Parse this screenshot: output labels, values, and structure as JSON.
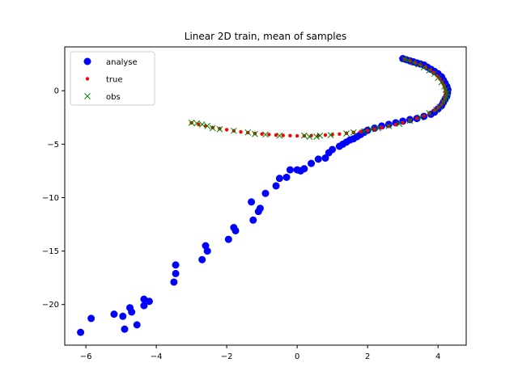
{
  "chart_data": {
    "type": "scatter",
    "title": "Linear 2D train, mean of samples",
    "xlabel": "",
    "ylabel": "",
    "xlim": [
      -6.6,
      4.8
    ],
    "ylim": [
      -23.8,
      4.1
    ],
    "x_ticks": [
      -6,
      -4,
      -2,
      0,
      2,
      4
    ],
    "x_tick_labels": [
      "−6",
      "−4",
      "−2",
      "0",
      "2",
      "4"
    ],
    "y_ticks": [
      -20,
      -15,
      -10,
      -5,
      0
    ],
    "y_tick_labels": [
      "−20",
      "−15",
      "−10",
      "−5",
      "0"
    ],
    "grid": false,
    "legend_position": "top-left",
    "series": [
      {
        "name": "analyse",
        "marker": "circle",
        "color": "#0000ff",
        "points": [
          [
            3.0,
            3.0
          ],
          [
            3.1,
            2.9
          ],
          [
            3.2,
            2.8
          ],
          [
            3.3,
            2.7
          ],
          [
            3.4,
            2.6
          ],
          [
            3.5,
            2.5
          ],
          [
            3.6,
            2.4
          ],
          [
            3.7,
            2.2
          ],
          [
            3.8,
            2.0
          ],
          [
            3.9,
            1.8
          ],
          [
            4.0,
            1.6
          ],
          [
            4.1,
            1.3
          ],
          [
            4.15,
            1.0
          ],
          [
            4.2,
            0.7
          ],
          [
            4.25,
            0.4
          ],
          [
            4.28,
            0.1
          ],
          [
            4.27,
            -0.2
          ],
          [
            4.25,
            -0.5
          ],
          [
            4.2,
            -0.8
          ],
          [
            4.15,
            -1.1
          ],
          [
            4.1,
            -1.4
          ],
          [
            4.0,
            -1.7
          ],
          [
            3.9,
            -2.0
          ],
          [
            3.8,
            -2.2
          ],
          [
            3.6,
            -2.4
          ],
          [
            3.4,
            -2.6
          ],
          [
            3.2,
            -2.7
          ],
          [
            3.0,
            -2.85
          ],
          [
            2.8,
            -3.0
          ],
          [
            2.6,
            -3.15
          ],
          [
            2.4,
            -3.3
          ],
          [
            2.2,
            -3.5
          ],
          [
            2.0,
            -3.7
          ],
          [
            1.9,
            -3.9
          ],
          [
            1.8,
            -4.1
          ],
          [
            1.7,
            -4.3
          ],
          [
            1.6,
            -4.5
          ],
          [
            1.5,
            -4.6
          ],
          [
            1.4,
            -4.8
          ],
          [
            1.3,
            -5.0
          ],
          [
            1.2,
            -5.2
          ],
          [
            1.0,
            -5.5
          ],
          [
            0.9,
            -5.8
          ],
          [
            0.8,
            -6.3
          ],
          [
            0.6,
            -6.4
          ],
          [
            0.4,
            -6.8
          ],
          [
            0.2,
            -7.3
          ],
          [
            0.1,
            -7.5
          ],
          [
            0.0,
            -7.4
          ],
          [
            -0.2,
            -7.4
          ],
          [
            -0.3,
            -8.1
          ],
          [
            -0.5,
            -8.2
          ],
          [
            -0.6,
            -8.9
          ],
          [
            -0.9,
            -9.6
          ],
          [
            -1.3,
            -10.4
          ],
          [
            -1.05,
            -11.0
          ],
          [
            -1.1,
            -11.3
          ],
          [
            -1.25,
            -12.1
          ],
          [
            -1.8,
            -12.8
          ],
          [
            -1.75,
            -13.1
          ],
          [
            -1.95,
            -13.9
          ],
          [
            -2.6,
            -14.5
          ],
          [
            -2.55,
            -15.0
          ],
          [
            -2.7,
            -15.8
          ],
          [
            -3.45,
            -16.3
          ],
          [
            -3.45,
            -17.1
          ],
          [
            -3.5,
            -17.9
          ],
          [
            -4.2,
            -19.7
          ],
          [
            -4.35,
            -19.5
          ],
          [
            -4.35,
            -20.1
          ],
          [
            -4.75,
            -20.3
          ],
          [
            -4.7,
            -20.7
          ],
          [
            -5.2,
            -20.9
          ],
          [
            -4.95,
            -21.1
          ],
          [
            -5.85,
            -21.3
          ],
          [
            -4.55,
            -21.9
          ],
          [
            -4.9,
            -22.3
          ],
          [
            -6.15,
            -22.6
          ]
        ]
      },
      {
        "name": "true",
        "marker": "dot",
        "color": "#ff0000",
        "points": [
          [
            -3.0,
            -3.0
          ],
          [
            -2.8,
            -3.15
          ],
          [
            -2.6,
            -3.3
          ],
          [
            -2.4,
            -3.45
          ],
          [
            -2.2,
            -3.55
          ],
          [
            -2.0,
            -3.65
          ],
          [
            -1.8,
            -3.75
          ],
          [
            -1.6,
            -3.85
          ],
          [
            -1.4,
            -3.92
          ],
          [
            -1.2,
            -4.0
          ],
          [
            -1.0,
            -4.05
          ],
          [
            -0.8,
            -4.1
          ],
          [
            -0.6,
            -4.15
          ],
          [
            -0.4,
            -4.18
          ],
          [
            -0.2,
            -4.2
          ],
          [
            0.0,
            -4.22
          ],
          [
            0.2,
            -4.22
          ],
          [
            0.4,
            -4.2
          ],
          [
            0.6,
            -4.18
          ],
          [
            0.8,
            -4.15
          ],
          [
            1.0,
            -4.1
          ],
          [
            1.2,
            -4.05
          ],
          [
            1.4,
            -3.98
          ],
          [
            1.6,
            -3.9
          ],
          [
            1.8,
            -3.82
          ],
          [
            2.0,
            -3.72
          ],
          [
            2.2,
            -3.6
          ],
          [
            2.4,
            -3.45
          ],
          [
            2.6,
            -3.3
          ],
          [
            2.8,
            -3.15
          ],
          [
            3.0,
            -2.98
          ],
          [
            3.2,
            -2.78
          ],
          [
            3.4,
            -2.58
          ],
          [
            3.6,
            -2.35
          ],
          [
            3.75,
            -2.12
          ],
          [
            3.9,
            -1.85
          ],
          [
            4.0,
            -1.6
          ],
          [
            4.1,
            -1.3
          ],
          [
            4.15,
            -1.0
          ],
          [
            4.2,
            -0.7
          ],
          [
            4.22,
            -0.4
          ],
          [
            4.22,
            -0.1
          ],
          [
            4.2,
            0.2
          ],
          [
            4.17,
            0.5
          ],
          [
            4.12,
            0.8
          ],
          [
            4.05,
            1.1
          ],
          [
            3.97,
            1.4
          ],
          [
            3.88,
            1.7
          ],
          [
            3.78,
            1.95
          ],
          [
            3.65,
            2.2
          ],
          [
            3.5,
            2.42
          ],
          [
            3.35,
            2.62
          ],
          [
            3.2,
            2.8
          ],
          [
            3.05,
            2.95
          ]
        ]
      },
      {
        "name": "obs",
        "marker": "x",
        "color": "#008000",
        "points": [
          [
            -3.0,
            -3.0
          ],
          [
            -2.85,
            -3.05
          ],
          [
            -2.7,
            -3.15
          ],
          [
            -2.55,
            -3.3
          ],
          [
            -2.4,
            -3.5
          ],
          [
            -2.2,
            -3.6
          ],
          [
            -1.8,
            -3.75
          ],
          [
            -1.4,
            -3.9
          ],
          [
            -1.2,
            -4.05
          ],
          [
            -0.9,
            -4.1
          ],
          [
            -0.5,
            -4.2
          ],
          [
            0.2,
            -4.2
          ],
          [
            0.35,
            -4.3
          ],
          [
            0.55,
            -4.3
          ],
          [
            0.65,
            -4.2
          ],
          [
            0.95,
            -4.15
          ],
          [
            1.4,
            -4.0
          ],
          [
            1.6,
            -3.9
          ],
          [
            1.9,
            -3.8
          ],
          [
            2.1,
            -3.6
          ],
          [
            2.3,
            -3.5
          ],
          [
            2.6,
            -3.3
          ],
          [
            2.9,
            -3.1
          ],
          [
            3.2,
            -2.8
          ],
          [
            3.5,
            -2.5
          ],
          [
            3.75,
            -2.1
          ],
          [
            3.95,
            -1.8
          ],
          [
            4.05,
            -1.5
          ],
          [
            4.15,
            -1.1
          ],
          [
            4.2,
            -0.8
          ],
          [
            4.25,
            -0.5
          ],
          [
            4.25,
            -0.2
          ],
          [
            4.22,
            0.1
          ],
          [
            4.18,
            0.4
          ],
          [
            4.1,
            0.8
          ],
          [
            4.0,
            1.2
          ],
          [
            3.9,
            1.6
          ],
          [
            3.75,
            1.9
          ],
          [
            3.6,
            2.2
          ],
          [
            3.45,
            2.45
          ],
          [
            3.3,
            2.65
          ],
          [
            3.15,
            2.85
          ],
          [
            3.05,
            2.95
          ]
        ]
      }
    ]
  }
}
